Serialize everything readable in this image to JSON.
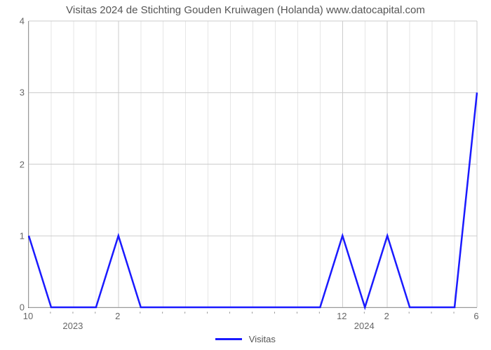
{
  "chart": {
    "type": "line",
    "title": "Visitas 2024 de Stichting Gouden Kruiwagen (Holanda) www.datocapital.com",
    "title_fontsize": 15,
    "title_color": "#555555",
    "background_color": "#ffffff",
    "axis_color": "#666666",
    "grid_color": "#e6e6e6",
    "major_grid_color": "#cccccc",
    "line_color": "#1a1aff",
    "line_width": 2.5,
    "y": {
      "min": 0,
      "max": 4,
      "ticks": [
        0,
        1,
        2,
        3,
        4
      ],
      "label_color": "#666666",
      "label_fontsize": 13
    },
    "x": {
      "min": 0,
      "max": 20,
      "major_ticks": [
        {
          "index": 0,
          "label": "10"
        },
        {
          "index": 4,
          "label": "2"
        },
        {
          "index": 14,
          "label": "12"
        },
        {
          "index": 16,
          "label": "2"
        },
        {
          "index": 20,
          "label": "6"
        }
      ],
      "year_labels": [
        {
          "index": 2,
          "label": "2023"
        },
        {
          "index": 15,
          "label": "2024"
        }
      ],
      "minor_tick_indices": [
        1,
        2,
        3,
        5,
        6,
        7,
        8,
        9,
        10,
        11,
        12,
        13,
        15,
        17,
        18,
        19
      ],
      "label_color": "#666666",
      "label_fontsize": 13
    },
    "series": {
      "name": "Visitas",
      "x": [
        0,
        1,
        2,
        3,
        4,
        5,
        6,
        7,
        8,
        9,
        10,
        11,
        12,
        13,
        14,
        15,
        16,
        17,
        18,
        19,
        20
      ],
      "y": [
        1,
        0,
        0,
        0,
        1,
        0,
        0,
        0,
        0,
        0,
        0,
        0,
        0,
        0,
        1,
        0,
        1,
        0,
        0,
        0,
        3
      ]
    },
    "legend": {
      "label": "Visitas",
      "line_color": "#1a1aff",
      "text_color": "#555555"
    }
  }
}
